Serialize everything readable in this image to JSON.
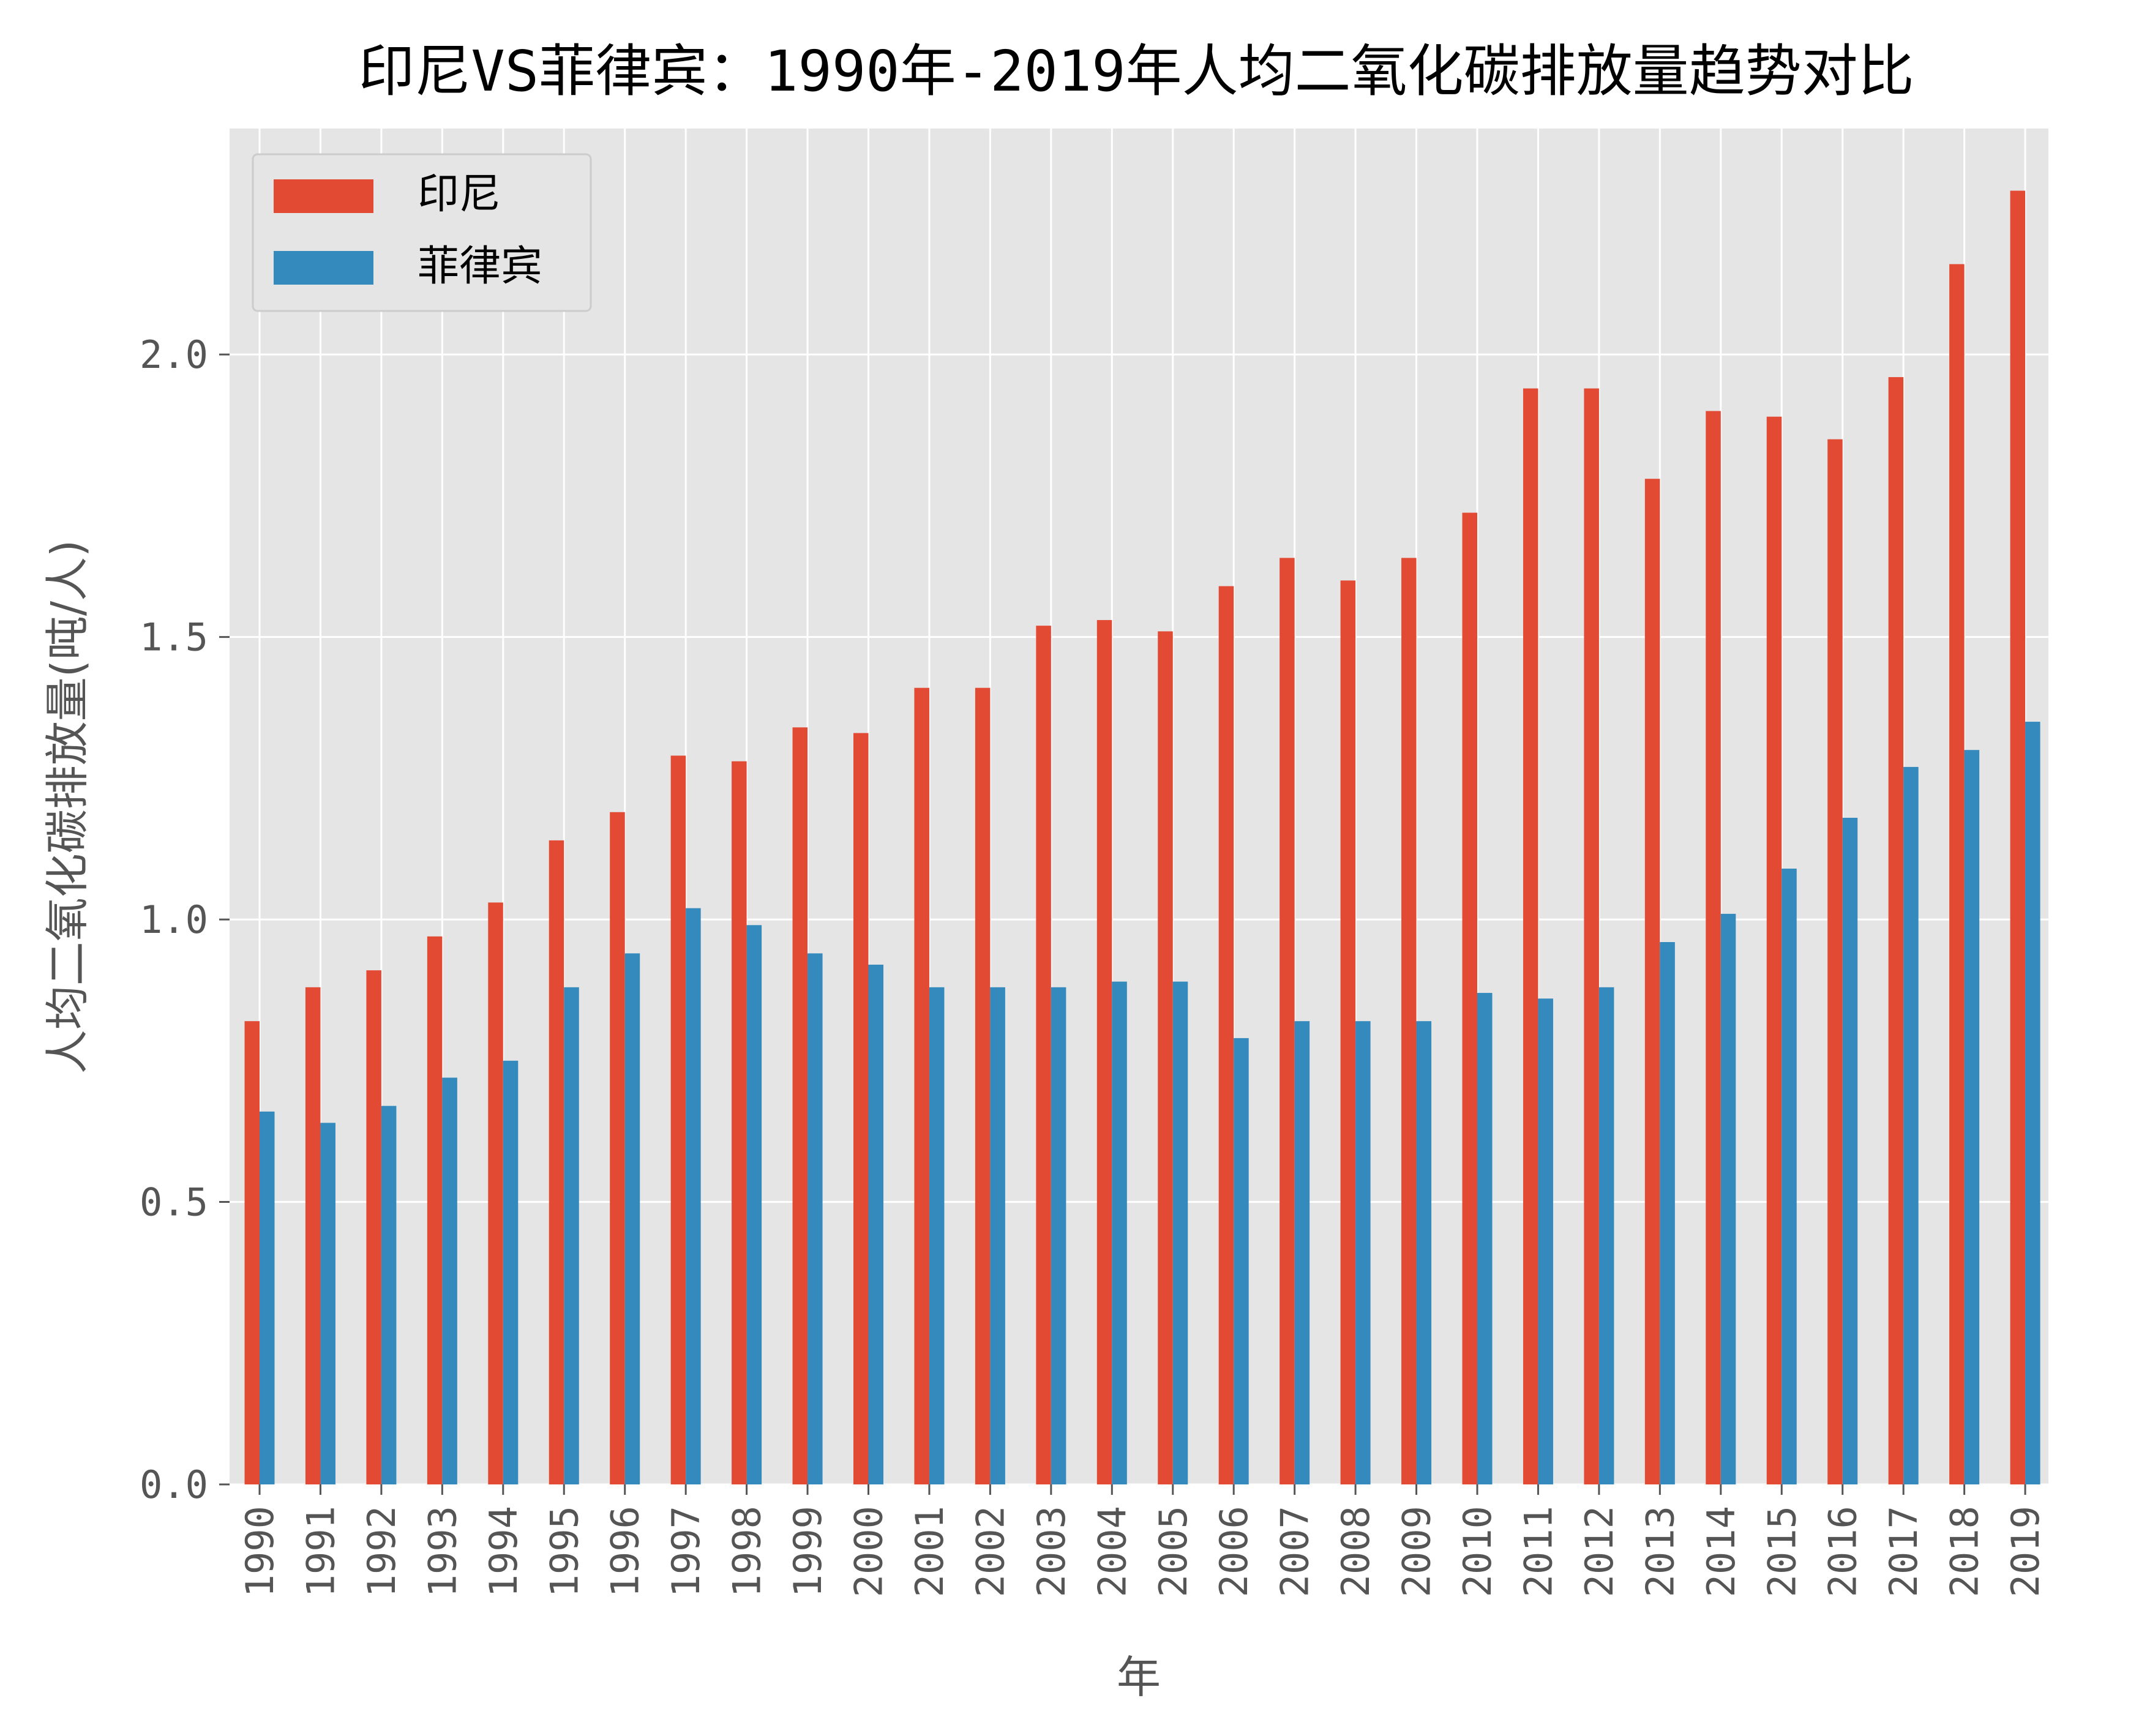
{
  "chart_data": {
    "type": "bar",
    "title": "印尼VS菲律宾：1990年-2019年人均二氧化碳排放量趋势对比",
    "xlabel": "年",
    "ylabel": "人均二氧化碳排放量(吨/人)",
    "ylim": [
      0,
      2.4
    ],
    "yticks": [
      "0.0",
      "0.5",
      "1.0",
      "1.5",
      "2.0"
    ],
    "ytick_values": [
      0,
      0.5,
      1.0,
      1.5,
      2.0
    ],
    "grid": true,
    "legend_position": "top-left",
    "categories": [
      "1990",
      "1991",
      "1992",
      "1993",
      "1994",
      "1995",
      "1996",
      "1997",
      "1998",
      "1999",
      "2000",
      "2001",
      "2002",
      "2003",
      "2004",
      "2005",
      "2006",
      "2007",
      "2008",
      "2009",
      "2010",
      "2011",
      "2012",
      "2013",
      "2014",
      "2015",
      "2016",
      "2017",
      "2018",
      "2019"
    ],
    "series": [
      {
        "name": "印尼",
        "color": "#E24A33",
        "values": [
          0.82,
          0.88,
          0.91,
          0.97,
          1.03,
          1.14,
          1.19,
          1.29,
          1.28,
          1.34,
          1.33,
          1.41,
          1.41,
          1.52,
          1.53,
          1.51,
          1.59,
          1.64,
          1.6,
          1.64,
          1.72,
          1.94,
          1.94,
          1.78,
          1.9,
          1.89,
          1.85,
          1.96,
          2.16,
          2.29
        ]
      },
      {
        "name": "菲律宾",
        "color": "#348ABD",
        "values": [
          0.66,
          0.64,
          0.67,
          0.72,
          0.75,
          0.88,
          0.94,
          1.02,
          0.99,
          0.94,
          0.92,
          0.88,
          0.88,
          0.88,
          0.89,
          0.89,
          0.79,
          0.82,
          0.82,
          0.82,
          0.87,
          0.86,
          0.88,
          0.96,
          1.01,
          1.09,
          1.18,
          1.27,
          1.3,
          1.35
        ]
      }
    ]
  },
  "colors": {
    "plot_background": "#E5E5E5",
    "grid": "#FFFFFF",
    "text": "#555555"
  }
}
